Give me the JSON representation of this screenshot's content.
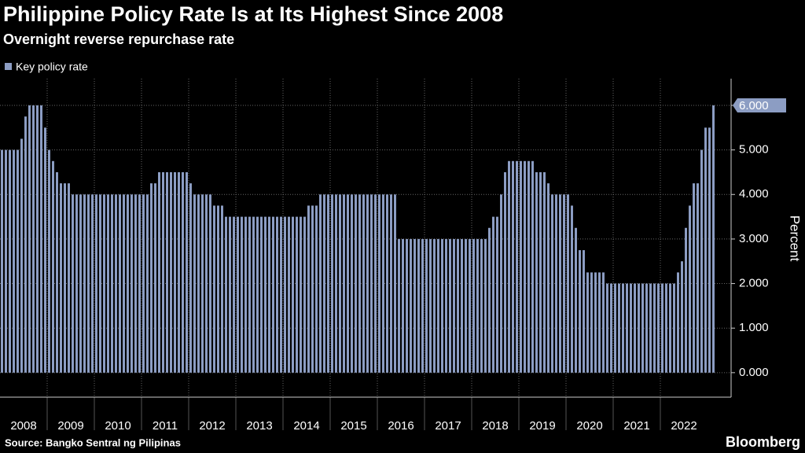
{
  "chart_data": {
    "type": "bar",
    "title": "Philippine Policy Rate Is at Its Highest Since 2008",
    "subtitle": "Overnight reverse repurchase rate",
    "y_label": "Percent",
    "source": "Source: Bangko Sentral ng Pilipinas",
    "brand": "Bloomberg",
    "last_value_label": "6.000",
    "categories": [
      "2008",
      null,
      null,
      null,
      null,
      null,
      null,
      null,
      null,
      null,
      null,
      null,
      "2009",
      null,
      null,
      null,
      null,
      null,
      null,
      null,
      null,
      null,
      null,
      null,
      "2010",
      null,
      null,
      null,
      null,
      null,
      null,
      null,
      null,
      null,
      null,
      null,
      "2011",
      null,
      null,
      null,
      null,
      null,
      null,
      null,
      null,
      null,
      null,
      null,
      "2012",
      null,
      null,
      null,
      null,
      null,
      null,
      null,
      null,
      null,
      null,
      null,
      "2013",
      null,
      null,
      null,
      null,
      null,
      null,
      null,
      null,
      null,
      null,
      null,
      "2014",
      null,
      null,
      null,
      null,
      null,
      null,
      null,
      null,
      null,
      null,
      null,
      "2015",
      null,
      null,
      null,
      null,
      null,
      null,
      null,
      null,
      null,
      null,
      null,
      "2016",
      null,
      null,
      null,
      null,
      null,
      null,
      null,
      null,
      null,
      null,
      null,
      "2017",
      null,
      null,
      null,
      null,
      null,
      null,
      null,
      null,
      null,
      null,
      null,
      "2018",
      null,
      null,
      null,
      null,
      null,
      null,
      null,
      null,
      null,
      null,
      null,
      "2019",
      null,
      null,
      null,
      null,
      null,
      null,
      null,
      null,
      null,
      null,
      null,
      "2020",
      null,
      null,
      null,
      null,
      null,
      null,
      null,
      null,
      null,
      null,
      null,
      "2021",
      null,
      null,
      null,
      null,
      null,
      null,
      null,
      null,
      null,
      null,
      null,
      "2022",
      null,
      null,
      null,
      null,
      null,
      null,
      null,
      null,
      null,
      null,
      null,
      null,
      null
    ],
    "series": [
      {
        "name": "Key policy rate",
        "color": "#8c9dc3",
        "values": [
          5.0,
          5.0,
          5.0,
          5.0,
          5.0,
          5.25,
          5.75,
          6.0,
          6.0,
          6.0,
          6.0,
          5.5,
          5.0,
          4.75,
          4.5,
          4.25,
          4.25,
          4.25,
          4.0,
          4.0,
          4.0,
          4.0,
          4.0,
          4.0,
          4.0,
          4.0,
          4.0,
          4.0,
          4.0,
          4.0,
          4.0,
          4.0,
          4.0,
          4.0,
          4.0,
          4.0,
          4.0,
          4.0,
          4.25,
          4.25,
          4.5,
          4.5,
          4.5,
          4.5,
          4.5,
          4.5,
          4.5,
          4.5,
          4.25,
          4.0,
          4.0,
          4.0,
          4.0,
          4.0,
          3.75,
          3.75,
          3.75,
          3.5,
          3.5,
          3.5,
          3.5,
          3.5,
          3.5,
          3.5,
          3.5,
          3.5,
          3.5,
          3.5,
          3.5,
          3.5,
          3.5,
          3.5,
          3.5,
          3.5,
          3.5,
          3.5,
          3.5,
          3.5,
          3.75,
          3.75,
          3.75,
          4.0,
          4.0,
          4.0,
          4.0,
          4.0,
          4.0,
          4.0,
          4.0,
          4.0,
          4.0,
          4.0,
          4.0,
          4.0,
          4.0,
          4.0,
          4.0,
          4.0,
          4.0,
          4.0,
          4.0,
          3.0,
          3.0,
          3.0,
          3.0,
          3.0,
          3.0,
          3.0,
          3.0,
          3.0,
          3.0,
          3.0,
          3.0,
          3.0,
          3.0,
          3.0,
          3.0,
          3.0,
          3.0,
          3.0,
          3.0,
          3.0,
          3.0,
          3.0,
          3.25,
          3.5,
          3.5,
          4.0,
          4.5,
          4.75,
          4.75,
          4.75,
          4.75,
          4.75,
          4.75,
          4.75,
          4.5,
          4.5,
          4.5,
          4.25,
          4.0,
          4.0,
          4.0,
          4.0,
          4.0,
          3.75,
          3.25,
          2.75,
          2.75,
          2.25,
          2.25,
          2.25,
          2.25,
          2.25,
          2.0,
          2.0,
          2.0,
          2.0,
          2.0,
          2.0,
          2.0,
          2.0,
          2.0,
          2.0,
          2.0,
          2.0,
          2.0,
          2.0,
          2.0,
          2.0,
          2.0,
          2.0,
          2.25,
          2.5,
          3.25,
          3.75,
          4.25,
          4.25,
          5.0,
          5.5,
          5.5,
          6.0
        ]
      }
    ],
    "ylim": [
      -0.55,
      6.6
    ],
    "yticks": [
      {
        "value": 0,
        "label": "0.000"
      },
      {
        "value": 1,
        "label": "1.000"
      },
      {
        "value": 2,
        "label": "2.000"
      },
      {
        "value": 3,
        "label": "3.000"
      },
      {
        "value": 4,
        "label": "4.000"
      },
      {
        "value": 5,
        "label": "5.000"
      },
      {
        "value": 6,
        "label": "6.000"
      }
    ],
    "grid": true,
    "legend": "top-left"
  }
}
